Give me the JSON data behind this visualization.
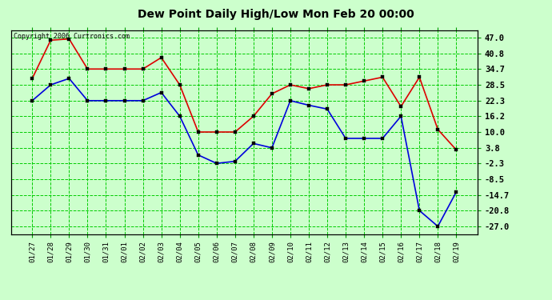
{
  "title": "Dew Point Daily High/Low Mon Feb 20 00:00",
  "copyright": "Copyright 2006 Curtronics.com",
  "background_color": "#ccffcc",
  "plot_bg_color": "#ccffcc",
  "grid_color": "#00cc00",
  "x_labels": [
    "01/27",
    "01/28",
    "01/29",
    "01/30",
    "01/31",
    "02/01",
    "02/02",
    "02/03",
    "02/04",
    "02/05",
    "02/06",
    "02/07",
    "02/08",
    "02/09",
    "02/10",
    "02/11",
    "02/12",
    "02/13",
    "02/14",
    "02/15",
    "02/16",
    "02/17",
    "02/18",
    "02/19"
  ],
  "high_values": [
    31.0,
    46.0,
    46.5,
    34.7,
    34.7,
    34.7,
    34.7,
    39.2,
    28.5,
    10.0,
    10.0,
    10.0,
    16.2,
    25.0,
    28.5,
    27.0,
    28.5,
    28.5,
    30.0,
    31.5,
    20.0,
    31.5,
    11.0,
    3.0
  ],
  "low_values": [
    22.3,
    28.5,
    31.0,
    22.3,
    22.3,
    22.3,
    22.3,
    25.5,
    16.2,
    1.0,
    -2.3,
    -1.5,
    5.5,
    3.8,
    22.3,
    20.5,
    19.0,
    7.5,
    7.5,
    7.5,
    16.2,
    -20.8,
    -27.0,
    -13.5
  ],
  "high_color": "#dd0000",
  "low_color": "#0000dd",
  "marker_size": 3,
  "yticks": [
    47.0,
    40.8,
    34.7,
    28.5,
    22.3,
    16.2,
    10.0,
    3.8,
    -2.3,
    -8.5,
    -14.7,
    -20.8,
    -27.0
  ],
  "ylim": [
    -30.0,
    50.0
  ],
  "line_width": 1.2,
  "figsize": [
    6.9,
    3.75
  ],
  "dpi": 100
}
